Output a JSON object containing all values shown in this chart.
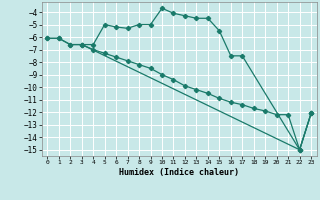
{
  "xlabel": "Humidex (Indice chaleur)",
  "bg_color": "#c8e8e8",
  "grid_color": "#ffffff",
  "line_color": "#1a7a6a",
  "ylim": [
    -15.5,
    -3.2
  ],
  "xlim": [
    -0.5,
    23.5
  ],
  "yticks": [
    -4,
    -5,
    -6,
    -7,
    -8,
    -9,
    -10,
    -11,
    -12,
    -13,
    -14,
    -15
  ],
  "xticks": [
    0,
    1,
    2,
    3,
    4,
    5,
    6,
    7,
    8,
    9,
    10,
    11,
    12,
    13,
    14,
    15,
    16,
    17,
    18,
    19,
    20,
    21,
    22,
    23
  ],
  "line1_x": [
    0,
    1,
    2,
    3,
    4,
    5,
    6,
    7,
    8,
    9,
    10,
    11,
    12,
    13,
    14,
    15,
    16,
    17,
    22,
    23
  ],
  "line1_y": [
    -6.1,
    -6.1,
    -6.6,
    -6.6,
    -6.6,
    -5.0,
    -5.2,
    -5.3,
    -5.0,
    -5.0,
    -3.7,
    -4.1,
    -4.3,
    -4.5,
    -4.5,
    -5.5,
    -7.5,
    -7.5,
    -15.0,
    -12.1
  ],
  "line2_x": [
    3,
    22,
    23
  ],
  "line2_y": [
    -6.6,
    -15.0,
    -12.1
  ],
  "line3_x": [
    0,
    1,
    2,
    3,
    4,
    5,
    6,
    7,
    8,
    9,
    10,
    11,
    12,
    13,
    14,
    15,
    16,
    17,
    18,
    19,
    20,
    21,
    22,
    23
  ],
  "line3_y": [
    -6.1,
    -6.1,
    -6.6,
    -6.6,
    -7.0,
    -7.3,
    -7.6,
    -7.9,
    -8.2,
    -8.5,
    -9.0,
    -9.4,
    -9.9,
    -10.2,
    -10.5,
    -10.9,
    -11.2,
    -11.4,
    -11.7,
    -11.9,
    -12.2,
    -12.2,
    -15.0,
    -12.1
  ]
}
